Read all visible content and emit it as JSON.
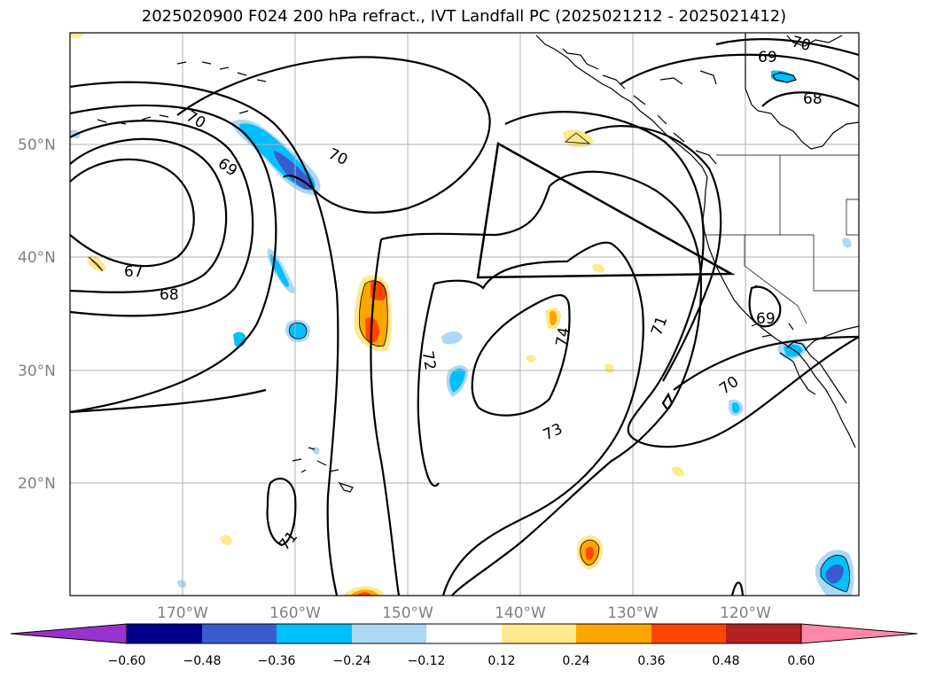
{
  "title": "2025020900 F024 200 hPa refract., IVT Landfall PC (2025021212 - 2025021412)",
  "map": {
    "projection": "PlateCarree",
    "lon_range": [
      -180,
      -110
    ],
    "lat_range": [
      10,
      60
    ],
    "lat_labels": [
      "50°N",
      "40°N",
      "30°N",
      "20°N"
    ],
    "lon_labels": [
      "170°W",
      "160°W",
      "150°W",
      "140°W",
      "130°W",
      "120°W"
    ],
    "contour_labels": [
      "70",
      "69",
      "68",
      "70",
      "69",
      "67",
      "68",
      "70",
      "72",
      "74",
      "73",
      "71",
      "69",
      "70",
      "71"
    ],
    "shading_colors": {
      "neg_strong": "#3a5bd0",
      "neg_mid": "#00bfff",
      "neg_light": "#add8f5",
      "pos_light": "#ffe98a",
      "pos_mid": "#ffa500",
      "pos_strong": "#ff4500"
    }
  },
  "colorbar": {
    "tick_labels": [
      "−0.60",
      "−0.48",
      "−0.36",
      "−0.24",
      "−0.12",
      "0.12",
      "0.24",
      "0.36",
      "0.48",
      "0.60"
    ],
    "colors": [
      "#9932cc",
      "#00008b",
      "#3a5bd0",
      "#00bfff",
      "#add8f5",
      "#ffffff",
      "#ffe98a",
      "#ffa500",
      "#ff4500",
      "#b22222",
      "#ff88aa"
    ],
    "extend": "both"
  }
}
